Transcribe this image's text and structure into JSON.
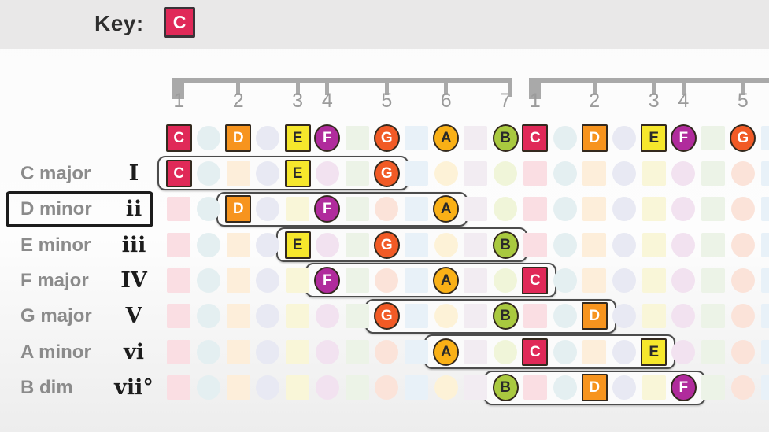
{
  "header": {
    "key_label": "Key:",
    "key_value": "C"
  },
  "palette": {
    "header_band": "#e9e8e8",
    "ruler": "#a9a9a9",
    "ruler_number": "#9b9b9b",
    "label_gray": "#8b8b8b",
    "numeral_black": "#1c1c1c",
    "cell_border": "#33291e",
    "chord_box_border": "#4c4c4c",
    "selected_highlight": "#1c1c1c"
  },
  "chromatic_notes": [
    {
      "semitone": 0,
      "name": "C",
      "shape": "square",
      "color": "#e02958",
      "faded": "#fadee3",
      "text": "#ffffff",
      "in_scale": true
    },
    {
      "semitone": 1,
      "name": "",
      "shape": "circle",
      "color": "",
      "faded": "#e4eff1",
      "text": "",
      "in_scale": false
    },
    {
      "semitone": 2,
      "name": "D",
      "shape": "square",
      "color": "#f7941e",
      "faded": "#fdeeda",
      "text": "#ffffff",
      "in_scale": true
    },
    {
      "semitone": 3,
      "name": "",
      "shape": "circle",
      "color": "",
      "faded": "#e8e9f3",
      "text": "",
      "in_scale": false
    },
    {
      "semitone": 4,
      "name": "E",
      "shape": "square",
      "color": "#f6e72c",
      "faded": "#f9f6d8",
      "text": "#2a2a2a",
      "in_scale": true
    },
    {
      "semitone": 5,
      "name": "F",
      "shape": "circle",
      "color": "#b02b9c",
      "faded": "#f2e2f0",
      "text": "#ffffff",
      "in_scale": true
    },
    {
      "semitone": 6,
      "name": "",
      "shape": "square",
      "color": "",
      "faded": "#ecf3e7",
      "text": "",
      "in_scale": false
    },
    {
      "semitone": 7,
      "name": "G",
      "shape": "circle",
      "color": "#f15a25",
      "faded": "#fbe3d9",
      "text": "#ffffff",
      "in_scale": true
    },
    {
      "semitone": 8,
      "name": "",
      "shape": "square",
      "color": "",
      "faded": "#e8f1f8",
      "text": "",
      "in_scale": false
    },
    {
      "semitone": 9,
      "name": "A",
      "shape": "circle",
      "color": "#f9b016",
      "faded": "#fdf2d7",
      "text": "#2a2a2a",
      "in_scale": true
    },
    {
      "semitone": 10,
      "name": "",
      "shape": "square",
      "color": "",
      "faded": "#f2ecf2",
      "text": "",
      "in_scale": false
    },
    {
      "semitone": 11,
      "name": "B",
      "shape": "circle",
      "color": "#a9c93f",
      "faded": "#f0f5d9",
      "text": "#2a2a2a",
      "in_scale": true
    }
  ],
  "ruler": {
    "octaves": [
      {
        "closed_end": true,
        "degrees": [
          {
            "label": "1",
            "s": 0
          },
          {
            "label": "2",
            "s": 2
          },
          {
            "label": "3",
            "s": 4
          },
          {
            "label": "4",
            "s": 5
          },
          {
            "label": "5",
            "s": 7
          },
          {
            "label": "6",
            "s": 9
          },
          {
            "label": "7",
            "s": 11
          }
        ]
      },
      {
        "closed_end": false,
        "degrees": [
          {
            "label": "1",
            "s": 12
          },
          {
            "label": "2",
            "s": 14
          },
          {
            "label": "3",
            "s": 16
          },
          {
            "label": "4",
            "s": 17
          },
          {
            "label": "5",
            "s": 19
          }
        ]
      }
    ]
  },
  "chords": [
    {
      "label": "C major",
      "numeral": "I",
      "selected": false,
      "tones": [
        0,
        4,
        7
      ]
    },
    {
      "label": "D minor",
      "numeral": "ii",
      "selected": true,
      "tones": [
        2,
        5,
        9
      ]
    },
    {
      "label": "E minor",
      "numeral": "iii",
      "selected": false,
      "tones": [
        4,
        7,
        11
      ]
    },
    {
      "label": "F major",
      "numeral": "IV",
      "selected": false,
      "tones": [
        5,
        9,
        12
      ]
    },
    {
      "label": "G major",
      "numeral": "V",
      "selected": false,
      "tones": [
        7,
        11,
        14
      ]
    },
    {
      "label": "A minor",
      "numeral": "vi",
      "selected": false,
      "tones": [
        9,
        12,
        16
      ]
    },
    {
      "label": "B dim",
      "numeral": "vii°",
      "selected": false,
      "tones": [
        11,
        14,
        17
      ]
    }
  ],
  "grid": {
    "total_columns": 21
  }
}
